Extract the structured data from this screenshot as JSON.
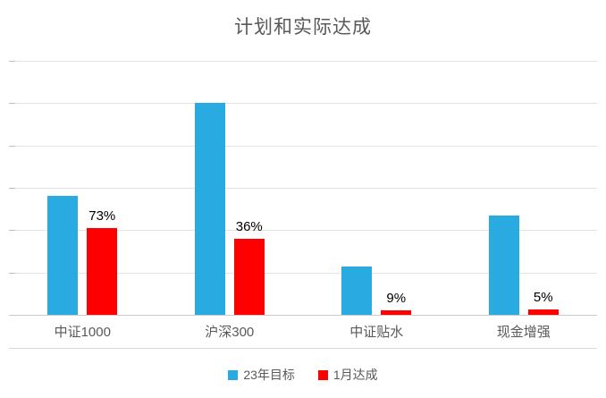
{
  "chart_data": {
    "type": "bar",
    "title": "计划和实际达成",
    "categories": [
      "中证1000",
      "沪深300",
      "中证贴水",
      "现金增强"
    ],
    "series": [
      {
        "name": "23年目标",
        "color": "#29ABE2",
        "values": [
          2.8,
          5.0,
          1.15,
          2.35
        ]
      },
      {
        "name": "1月达成",
        "color": "#FF0000",
        "values": [
          2.05,
          1.8,
          0.1,
          0.12
        ]
      }
    ],
    "percent_labels": [
      "73%",
      "36%",
      "9%",
      "5%"
    ],
    "ylim": [
      0,
      6
    ],
    "gridlines": true,
    "legend_position": "bottom",
    "colors": {
      "title_text": "#595959",
      "axis_text": "#595959",
      "gridline": "#E3E3E3",
      "data_label_text": "#000000"
    }
  }
}
